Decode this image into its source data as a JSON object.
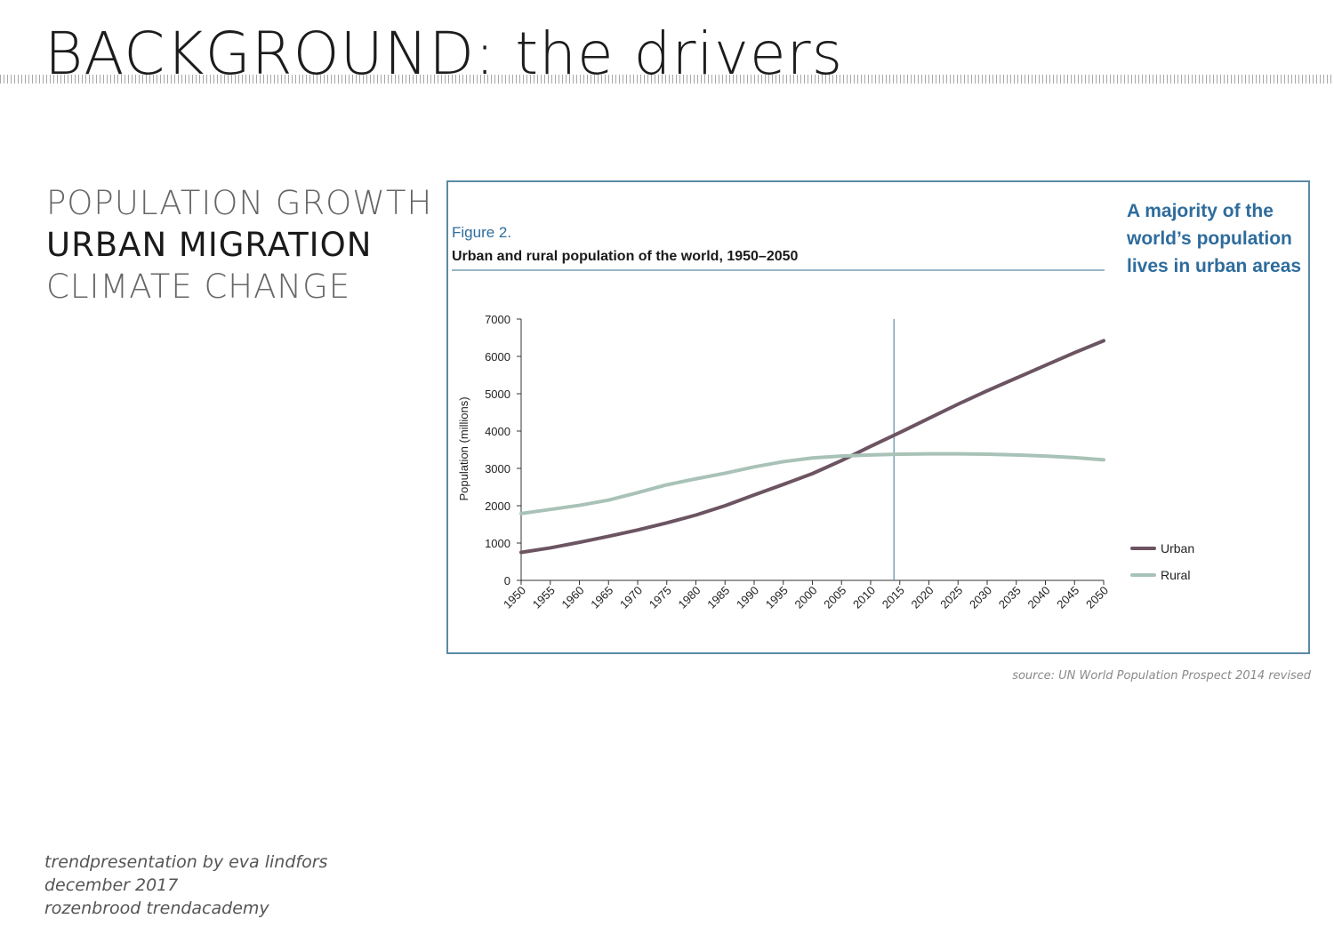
{
  "page": {
    "title": "BACKGROUND: the drivers",
    "drivers": [
      "POPULATION GROWTH",
      "URBAN MIGRATION",
      "CLIMATE CHANGE"
    ],
    "source": "source: UN World Population Prospect 2014 revised",
    "footer": [
      "trendpresentation by eva lindfors",
      "december 2017",
      "rozenbrood trendacademy"
    ]
  },
  "colors": {
    "urban": "#6c5462",
    "rural": "#a9c2b7",
    "accent": "#2e6c9c",
    "frame": "#5b8aa5"
  },
  "chart_data": {
    "type": "line",
    "figure_label": "Figure 2.",
    "title": "Urban and rural population of the world, 1950–2050",
    "callout": [
      "A majority of the",
      "world’s population",
      "lives in urban areas"
    ],
    "xlabel": "",
    "ylabel": "Population (millions)",
    "ylim": [
      0,
      7000
    ],
    "yticks": [
      0,
      1000,
      2000,
      3000,
      4000,
      5000,
      6000,
      7000
    ],
    "x": [
      1950,
      1955,
      1960,
      1965,
      1970,
      1975,
      1980,
      1985,
      1990,
      1995,
      2000,
      2005,
      2010,
      2015,
      2020,
      2025,
      2030,
      2035,
      2040,
      2045,
      2050
    ],
    "reference_line_x": 2014,
    "series": [
      {
        "name": "Urban",
        "color": "#6c5462",
        "values": [
          750,
          870,
          1020,
          1180,
          1350,
          1540,
          1750,
          2000,
          2290,
          2570,
          2860,
          3210,
          3590,
          3960,
          4340,
          4720,
          5080,
          5420,
          5760,
          6100,
          6420
        ]
      },
      {
        "name": "Rural",
        "color": "#a9c2b7",
        "values": [
          1790,
          1900,
          2010,
          2150,
          2350,
          2560,
          2720,
          2870,
          3040,
          3180,
          3280,
          3330,
          3360,
          3380,
          3390,
          3390,
          3380,
          3360,
          3330,
          3290,
          3230
        ]
      }
    ],
    "legend": "right",
    "grid": false
  }
}
